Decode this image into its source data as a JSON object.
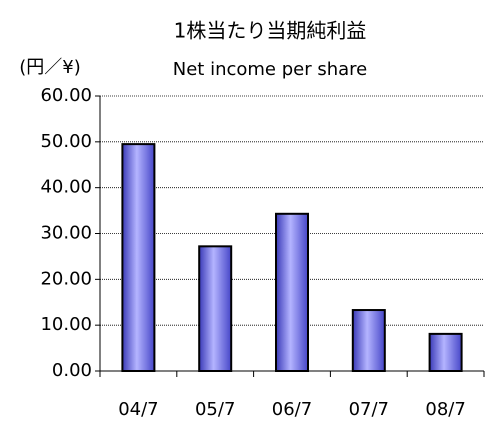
{
  "chart_data": {
    "type": "bar",
    "title": "1株当たり当期純利益",
    "subtitle": "Net income per share",
    "y_unit_label": "(円／¥)",
    "categories": [
      "04/7",
      "05/7",
      "06/7",
      "07/7",
      "08/7"
    ],
    "values": [
      49.5,
      27.2,
      34.3,
      13.3,
      8.1
    ],
    "color": "#6a6af0",
    "ylim": [
      0,
      60
    ],
    "yticks": [
      {
        "value": 0,
        "label": "0.00"
      },
      {
        "value": 10,
        "label": "10.00"
      },
      {
        "value": 20,
        "label": "20.00"
      },
      {
        "value": 30,
        "label": "30.00"
      },
      {
        "value": 40,
        "label": "40.00"
      },
      {
        "value": 50,
        "label": "50.00"
      },
      {
        "value": 60,
        "label": "60.00"
      }
    ],
    "grid": true
  }
}
